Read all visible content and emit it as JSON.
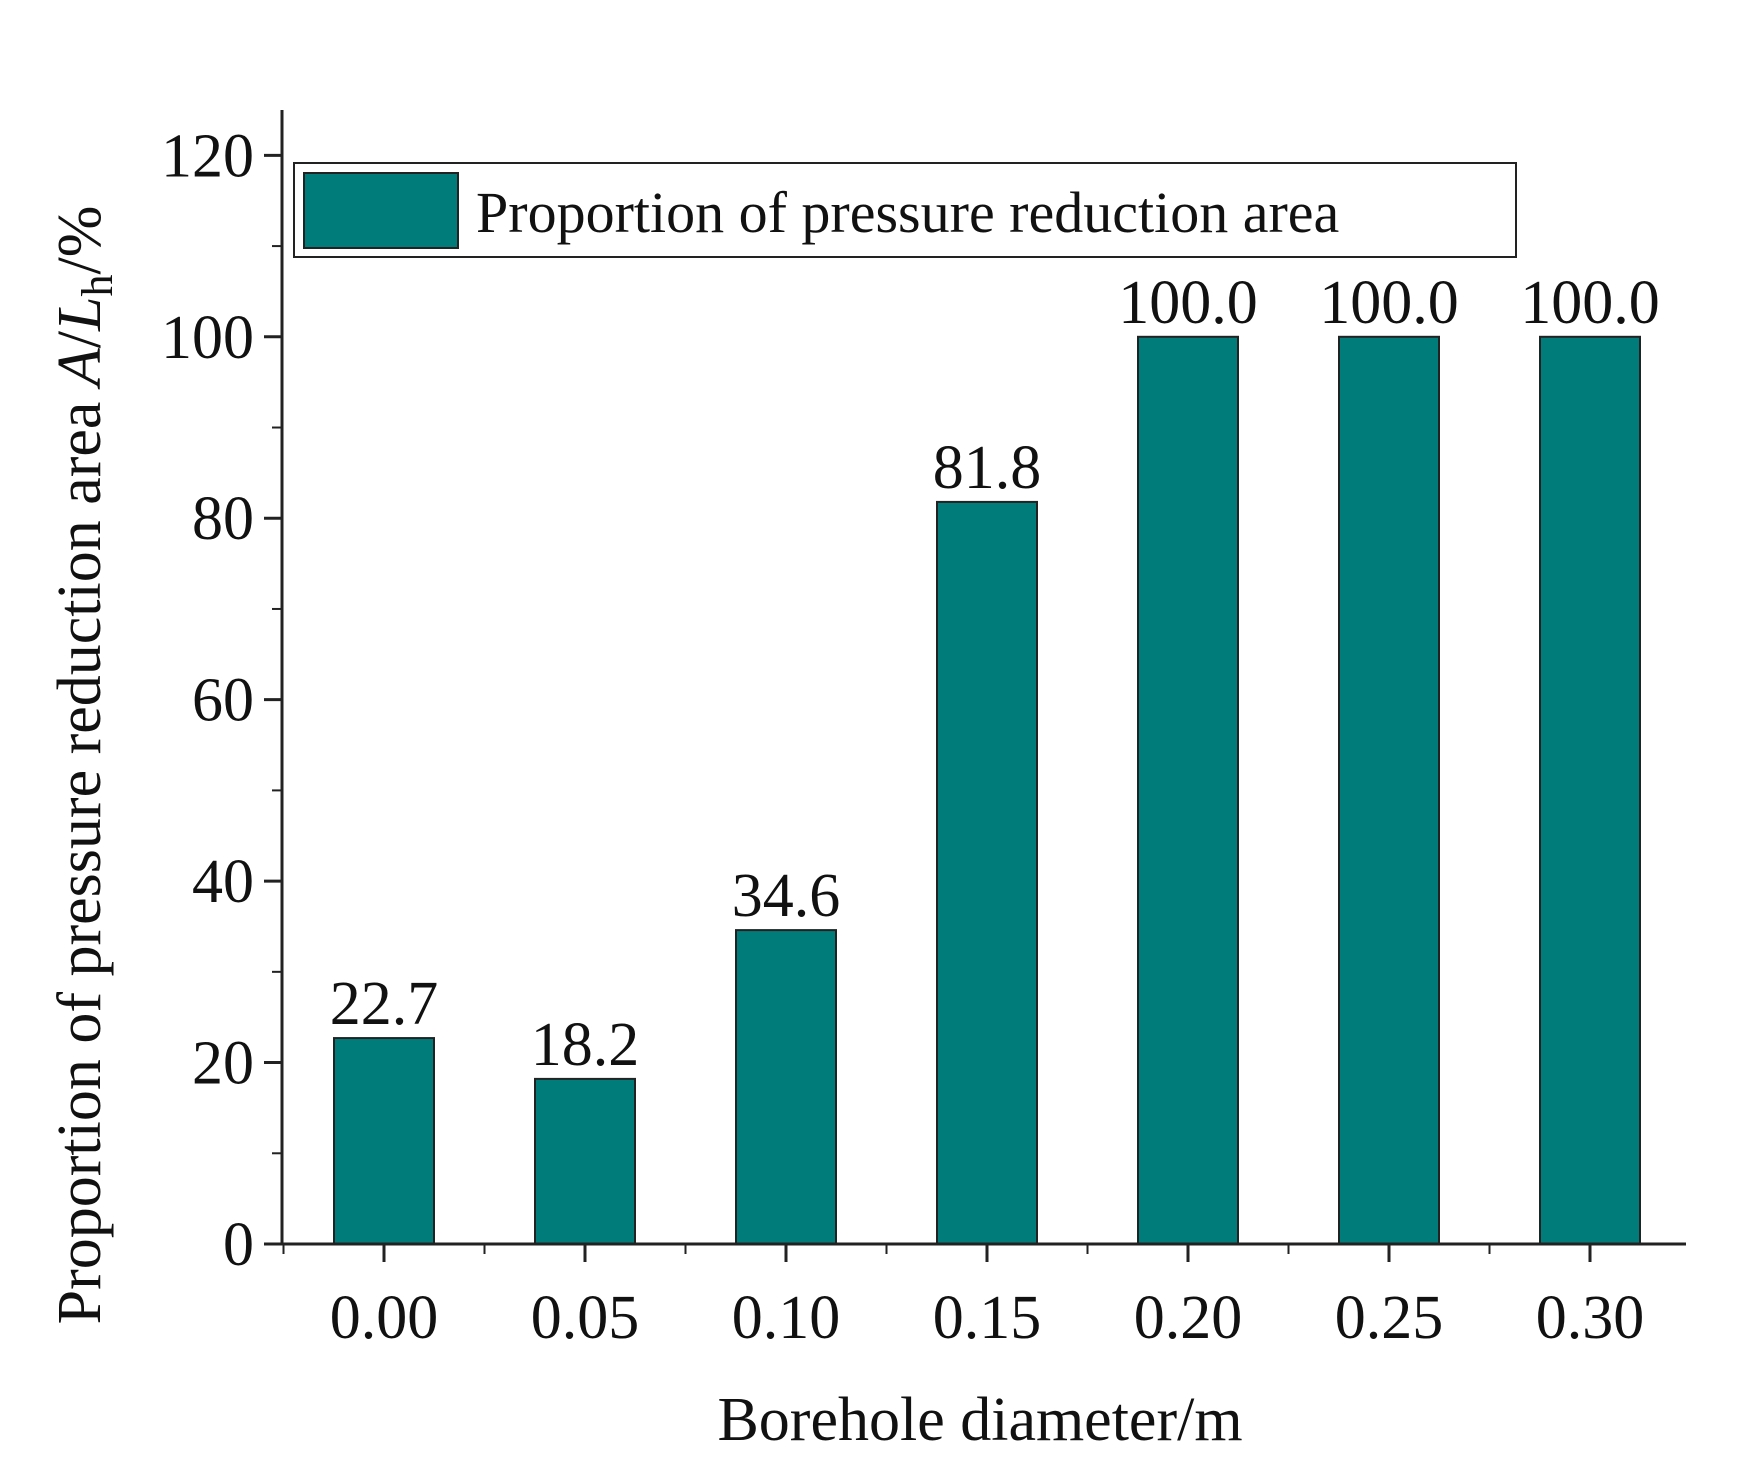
{
  "chart_data": {
    "type": "bar",
    "title": "",
    "categories": [
      "0.00",
      "0.05",
      "0.10",
      "0.15",
      "0.20",
      "0.25",
      "0.30"
    ],
    "series": [
      {
        "name": "Proportion of pressure reduction area",
        "values": [
          22.7,
          18.2,
          34.6,
          81.8,
          100.0,
          100.0,
          100.0
        ],
        "data_labels": [
          "22.7",
          "18.2",
          "34.6",
          "81.8",
          "100.0",
          "100.0",
          "100.0"
        ],
        "color": "#007d7a"
      }
    ],
    "xlabel": "Borehole diameter/m",
    "ylabel": {
      "prefix": "Proportion of pressure reduction area ",
      "var_a": "A",
      "slash1": "/",
      "var_l": "L",
      "subscript": "h",
      "suffix": "/%"
    },
    "ylim": [
      0,
      125
    ],
    "yticks": [
      "0",
      "20",
      "40",
      "60",
      "80",
      "100",
      "120"
    ],
    "grid": false,
    "legend_position": "top"
  }
}
